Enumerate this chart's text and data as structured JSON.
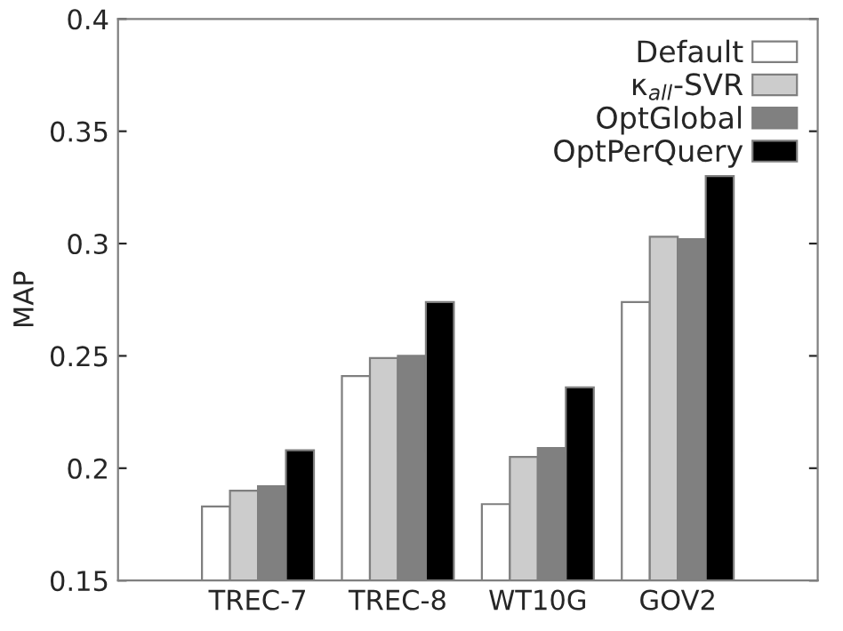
{
  "chart_data": {
    "type": "bar",
    "ylabel": "MAP",
    "categories": [
      "TREC-7",
      "TREC-8",
      "WT10G",
      "GOV2"
    ],
    "series": [
      {
        "name": "Default",
        "color": "#ffffff",
        "values": [
          0.183,
          0.241,
          0.184,
          0.274
        ]
      },
      {
        "name": "κ$_{all}$-SVR",
        "color": "#cccccc",
        "values": [
          0.19,
          0.249,
          0.205,
          0.303
        ]
      },
      {
        "name": "OptGlobal",
        "color": "#808080",
        "values": [
          0.192,
          0.25,
          0.209,
          0.302
        ]
      },
      {
        "name": "OptPerQuery",
        "color": "#000000",
        "values": [
          0.208,
          0.274,
          0.236,
          0.33
        ]
      }
    ],
    "ylim": [
      0.15,
      0.4
    ],
    "yticks": [
      0.15,
      0.2,
      0.25,
      0.3,
      0.35,
      0.4
    ],
    "grid": false,
    "legend": "top right"
  }
}
